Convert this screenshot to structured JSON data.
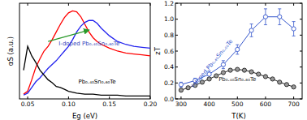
{
  "chart_data": [
    {
      "type": "line",
      "x_label": "Eg (eV)",
      "y_label": "αS (a.u.)",
      "xlim": [
        0.04,
        0.2
      ],
      "ylim": [
        0,
        1
      ],
      "xticks": [
        0.05,
        {
          "value": 0.1,
          "label": "0.10"
        },
        0.15,
        {
          "value": 0.2,
          "label": "0.20"
        }
      ],
      "tick_labels": "x",
      "annotations": [
        "I-doped Pb₀.₄₀Sn₀.₆₀Te",
        "Pb₀.₄₀Sn₀.₆₀Te"
      ],
      "series": [
        {
          "color": "#ff0000",
          "x": [
            0.045,
            0.05,
            0.055,
            0.06,
            0.065,
            0.07,
            0.075,
            0.08,
            0.085,
            0.09,
            0.095,
            0.1,
            0.105,
            0.11,
            0.115,
            0.12,
            0.125,
            0.13,
            0.135,
            0.14,
            0.15,
            0.16,
            0.17,
            0.18,
            0.19,
            0.2
          ],
          "values": [
            0.05,
            0.08,
            0.2,
            0.33,
            0.42,
            0.5,
            0.55,
            0.62,
            0.7,
            0.78,
            0.85,
            0.9,
            0.92,
            0.91,
            0.86,
            0.78,
            0.7,
            0.64,
            0.6,
            0.57,
            0.53,
            0.5,
            0.48,
            0.47,
            0.46,
            0.45
          ]
        },
        {
          "color": "#2222ee",
          "x": [
            0.045,
            0.05,
            0.055,
            0.06,
            0.065,
            0.07,
            0.075,
            0.08,
            0.085,
            0.09,
            0.095,
            0.1,
            0.105,
            0.11,
            0.115,
            0.12,
            0.125,
            0.13,
            0.135,
            0.14,
            0.15,
            0.16,
            0.17,
            0.18,
            0.19,
            0.2
          ],
          "values": [
            0.04,
            0.06,
            0.12,
            0.18,
            0.22,
            0.27,
            0.32,
            0.36,
            0.4,
            0.45,
            0.5,
            0.55,
            0.62,
            0.7,
            0.76,
            0.8,
            0.82,
            0.82,
            0.79,
            0.74,
            0.66,
            0.6,
            0.57,
            0.55,
            0.54,
            0.53
          ]
        },
        {
          "color": "#000000",
          "x": [
            0.045,
            0.05,
            0.055,
            0.06,
            0.065,
            0.07,
            0.075,
            0.08,
            0.085,
            0.09,
            0.095,
            0.1,
            0.11,
            0.12,
            0.13,
            0.14,
            0.15,
            0.16,
            0.17,
            0.18,
            0.19,
            0.2
          ],
          "values": [
            0.3,
            0.55,
            0.45,
            0.38,
            0.3,
            0.25,
            0.2,
            0.17,
            0.13,
            0.12,
            0.1,
            0.08,
            0.06,
            0.05,
            0.05,
            0.04,
            0.04,
            0.04,
            0.03,
            0.03,
            0.03,
            0.03
          ]
        }
      ]
    },
    {
      "type": "line",
      "x_label": "T(K)",
      "y_label": "zT",
      "xlim": [
        280,
        730
      ],
      "ylim": [
        0,
        1.2
      ],
      "xticks": [
        300,
        400,
        500,
        600,
        700
      ],
      "yticks": [
        {
          "value": 0,
          "label": "0.0"
        },
        0.2,
        0.4,
        0.6,
        0.8,
        {
          "value": 1,
          "label": "1.0"
        },
        1.2
      ],
      "series": [
        {
          "name": "I-doped Pb₀.₄₀Sn₀.₆₀Te",
          "color": "#3355cc",
          "marker": "open-circle",
          "x": [
            300,
            350,
            400,
            450,
            500,
            550,
            600,
            650,
            700
          ],
          "values": [
            0.18,
            0.23,
            0.31,
            0.43,
            0.62,
            0.86,
            1.03,
            1.03,
            0.88
          ],
          "errors": [
            0.03,
            0.03,
            0.04,
            0.05,
            0.06,
            0.08,
            0.1,
            0.1,
            0.09
          ]
        },
        {
          "name": "Pb₀.₄₀Sn₀.₆₀Te",
          "color": "#222222",
          "marker": "circle",
          "x": [
            300,
            325,
            350,
            375,
            400,
            425,
            450,
            475,
            500,
            525,
            550,
            575,
            600,
            625,
            650,
            675,
            700
          ],
          "values": [
            0.11,
            0.14,
            0.17,
            0.21,
            0.25,
            0.29,
            0.33,
            0.36,
            0.37,
            0.36,
            0.34,
            0.31,
            0.28,
            0.25,
            0.21,
            0.18,
            0.15
          ]
        }
      ]
    }
  ]
}
